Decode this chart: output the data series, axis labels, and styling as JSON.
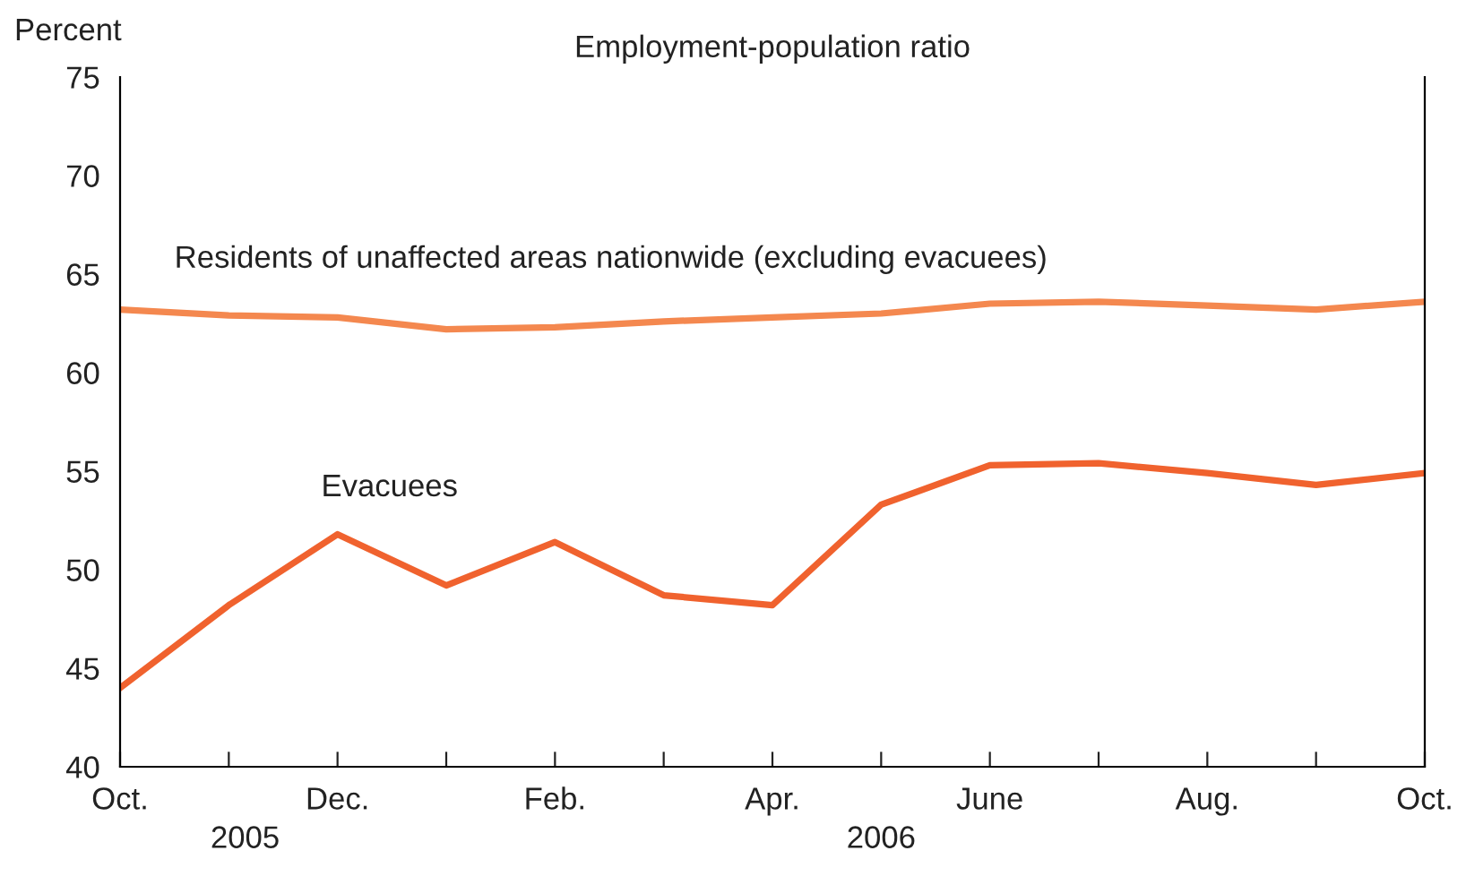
{
  "chart_data": {
    "type": "line",
    "title": "Employment-population ratio",
    "ylabel": "Percent",
    "categories": [
      "Oct.",
      null,
      "Dec.",
      null,
      "Feb.",
      null,
      "Apr.",
      null,
      "June",
      null,
      "Aug.",
      null,
      "Oct."
    ],
    "series": [
      {
        "name": "Residents of unaffected areas nationwide (excluding evacuees)",
        "color": "#f4884f",
        "values": [
          63.2,
          62.9,
          62.8,
          62.2,
          62.3,
          62.6,
          62.8,
          63.0,
          63.5,
          63.6,
          63.4,
          63.2,
          63.6
        ]
      },
      {
        "name": "Evacuees",
        "color": "#f0622e",
        "values": [
          44.0,
          48.2,
          51.8,
          49.2,
          51.4,
          48.7,
          48.2,
          53.3,
          55.3,
          55.4,
          54.9,
          54.3,
          54.9
        ]
      }
    ],
    "annotations": [
      "2005",
      "2006"
    ],
    "ylim": [
      40,
      75
    ],
    "yticks": [
      40,
      45,
      50,
      55,
      60,
      65,
      70,
      75
    ],
    "grid": false,
    "legend": false
  }
}
